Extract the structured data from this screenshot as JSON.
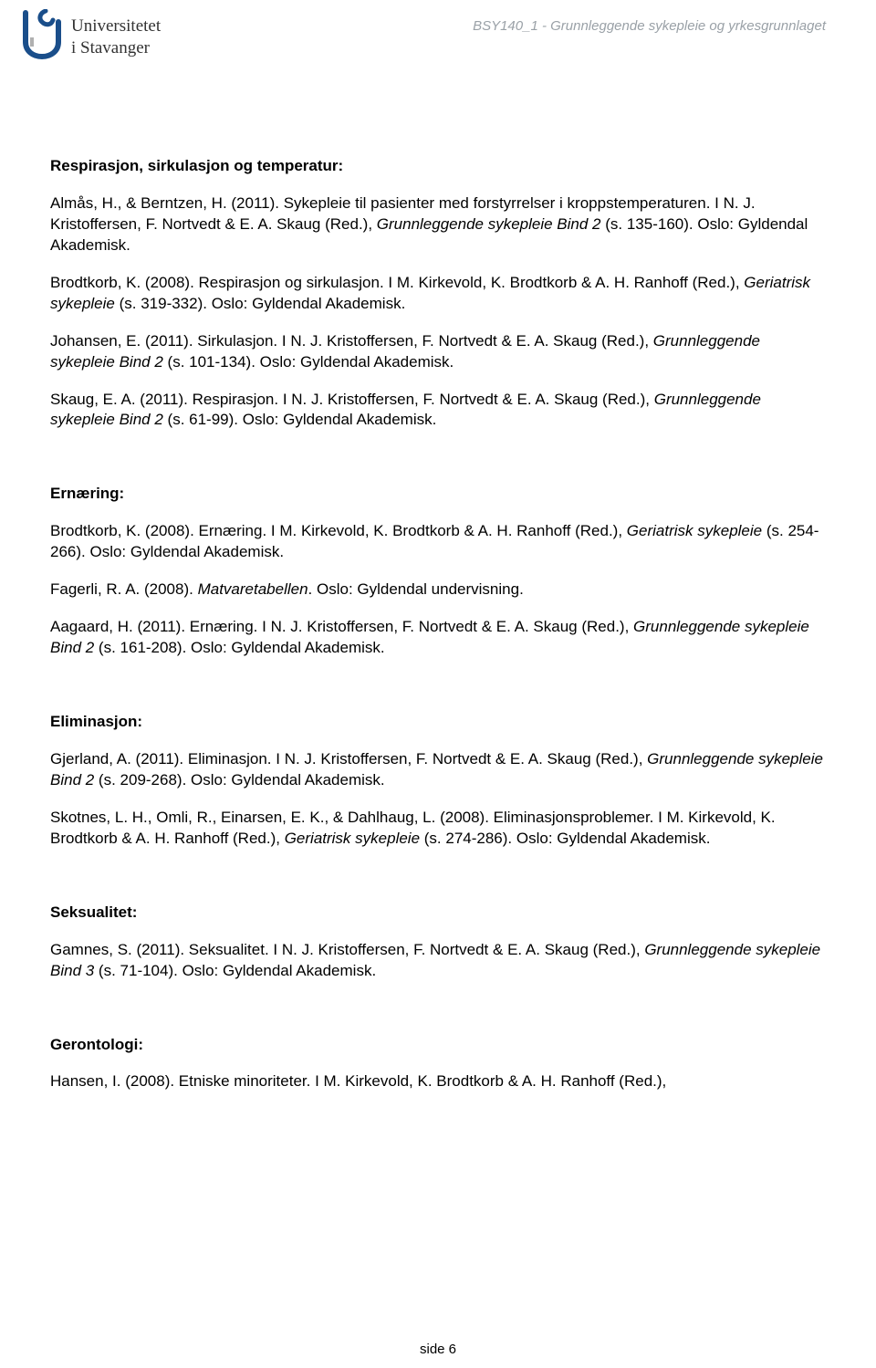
{
  "header": {
    "university_line1": "Universitetet",
    "university_line2": "i Stavanger",
    "course_code": "BSY140_1 - Grunnleggende sykepleie og yrkesgrunnlaget"
  },
  "sections": [
    {
      "heading": "Respirasjon, sirkulasjon og temperatur:",
      "entries": [
        {
          "pre": "Almås, H., & Berntzen, H. (2011). Sykepleie til pasienter med forstyrrelser i kroppstemperaturen. I N. J. Kristoffersen, F. Nortvedt & E. A. Skaug (Red.), ",
          "italic": "Grunnleggende sykepleie Bind 2",
          "post": " (s. 135-160). Oslo: Gyldendal Akademisk."
        },
        {
          "pre": "Brodtkorb, K. (2008). Respirasjon og sirkulasjon. I M. Kirkevold, K. Brodtkorb & A. H. Ranhoff (Red.), ",
          "italic": "Geriatrisk sykepleie",
          "post": " (s. 319-332). Oslo: Gyldendal Akademisk."
        },
        {
          "pre": "Johansen, E. (2011). Sirkulasjon. I N. J. Kristoffersen, F. Nortvedt & E. A. Skaug (Red.), ",
          "italic": "Grunnleggende sykepleie Bind 2",
          "post": " (s. 101-134). Oslo: Gyldendal Akademisk."
        },
        {
          "pre": "Skaug, E. A. (2011). Respirasjon. I N. J. Kristoffersen, F. Nortvedt & E. A. Skaug (Red.), ",
          "italic": "Grunnleggende sykepleie Bind 2",
          "post": " (s. 61-99). Oslo: Gyldendal Akademisk."
        }
      ]
    },
    {
      "heading": "Ernæring:",
      "entries": [
        {
          "pre": "Brodtkorb, K. (2008). Ernæring. I M. Kirkevold, K. Brodtkorb & A. H. Ranhoff (Red.), ",
          "italic": "Geriatrisk sykepleie",
          "post": " (s. 254-266). Oslo: Gyldendal Akademisk."
        },
        {
          "pre": "Fagerli, R. A. (2008). ",
          "italic": "Matvaretabellen",
          "post": ". Oslo: Gyldendal undervisning."
        },
        {
          "pre": "Aagaard, H. (2011). Ernæring. I N. J. Kristoffersen, F. Nortvedt & E. A. Skaug (Red.), ",
          "italic": "Grunnleggende sykepleie Bind 2",
          "post": " (s. 161-208). Oslo: Gyldendal Akademisk."
        }
      ]
    },
    {
      "heading": "Eliminasjon:",
      "entries": [
        {
          "pre": "Gjerland, A. (2011). Eliminasjon. I N. J. Kristoffersen, F. Nortvedt & E. A. Skaug (Red.), ",
          "italic": "Grunnleggende sykepleie Bind 2",
          "post": " (s. 209-268). Oslo: Gyldendal Akademisk."
        },
        {
          "pre": "Skotnes, L. H., Omli, R., Einarsen, E. K., & Dahlhaug, L. (2008). Eliminasjonsproblemer. I M. Kirkevold, K. Brodtkorb & A. H. Ranhoff (Red.), ",
          "italic": "Geriatrisk sykepleie",
          "post": " (s. 274-286). Oslo: Gyldendal Akademisk."
        }
      ]
    },
    {
      "heading": "Seksualitet:",
      "entries": [
        {
          "pre": "Gamnes, S. (2011). Seksualitet. I N. J. Kristoffersen, F. Nortvedt & E. A. Skaug (Red.), ",
          "italic": "Grunnleggende sykepleie Bind 3",
          "post": " (s. 71-104). Oslo: Gyldendal Akademisk."
        }
      ]
    },
    {
      "heading": "Gerontologi:",
      "entries": [
        {
          "pre": "Hansen, I. (2008). Etniske minoriteter. I M. Kirkevold, K. Brodtkorb & A. H. Ranhoff (Red.),",
          "italic": "",
          "post": ""
        }
      ]
    }
  ],
  "footer": {
    "page_label": "side 6"
  },
  "colors": {
    "text": "#000000",
    "header_grey": "#9aa1a7",
    "logo_blue": "#1a4e8a",
    "background": "#ffffff"
  }
}
